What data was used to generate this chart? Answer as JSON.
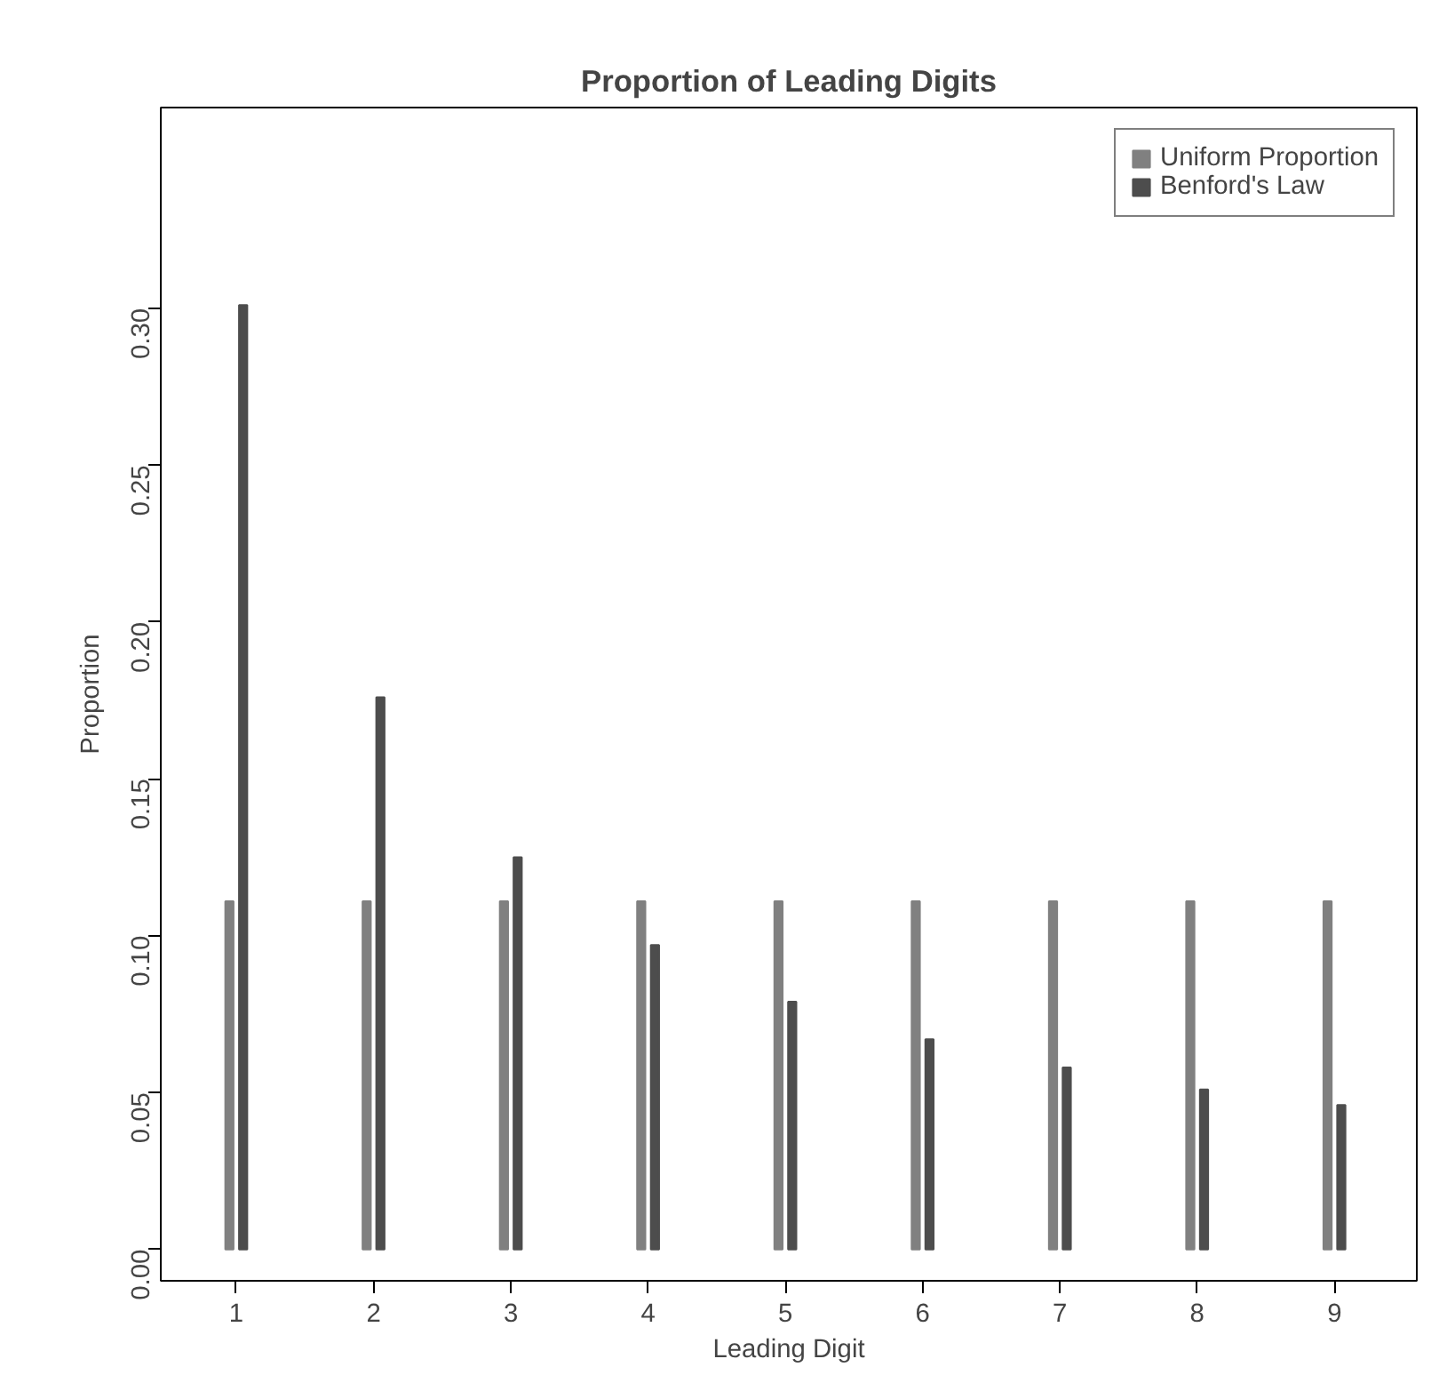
{
  "chart_data": {
    "type": "bar",
    "title": "Proportion of Leading Digits",
    "xlabel": "Leading Digit",
    "ylabel": "Proportion",
    "x": [
      1,
      2,
      3,
      4,
      5,
      6,
      7,
      8,
      9
    ],
    "series": [
      {
        "name": "Uniform Proportion",
        "color": "#808080",
        "values": [
          0.111,
          0.111,
          0.111,
          0.111,
          0.111,
          0.111,
          0.111,
          0.111,
          0.111
        ]
      },
      {
        "name": "Benford's Law",
        "color": "#4d4d4d",
        "values": [
          0.301,
          0.176,
          0.125,
          0.097,
          0.079,
          0.067,
          0.058,
          0.051,
          0.046
        ]
      }
    ],
    "xlim": [
      0.45,
      9.6
    ],
    "xticks": [
      1,
      2,
      3,
      4,
      5,
      6,
      7,
      8,
      9
    ],
    "ylim": [
      -0.01,
      0.364
    ],
    "yticks": [
      {
        "value": 0,
        "label": "0.00"
      },
      {
        "value": 0.05,
        "label": "0.05"
      },
      {
        "value": 0.1,
        "label": "0.10"
      },
      {
        "value": 0.15,
        "label": "0.15"
      },
      {
        "value": 0.2,
        "label": "0.20"
      },
      {
        "value": 0.25,
        "label": "0.25"
      },
      {
        "value": 0.3,
        "label": "0.30"
      }
    ],
    "grid": false,
    "legend": "top right"
  }
}
